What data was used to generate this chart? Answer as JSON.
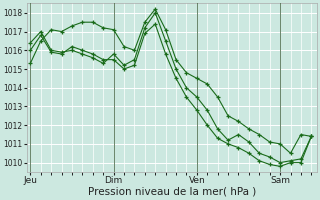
{
  "xlabel": "Pression niveau de la mer( hPa )",
  "bg_color": "#cce8e0",
  "grid_color": "#ffffff",
  "line_color": "#1a6b1a",
  "ylim": [
    1009.5,
    1018.5
  ],
  "yticks": [
    1010,
    1011,
    1012,
    1013,
    1014,
    1015,
    1016,
    1017,
    1018
  ],
  "day_labels": [
    "Jeu",
    "Dim",
    "Ven",
    "Sam"
  ],
  "day_positions": [
    0,
    48,
    96,
    144
  ],
  "xlim": [
    -2,
    165
  ],
  "series": [
    [
      0,
      1015.3,
      6,
      1016.5,
      12,
      1017.1,
      18,
      1017.0,
      24,
      1017.3,
      30,
      1017.5,
      36,
      1017.5,
      42,
      1017.2,
      48,
      1017.1,
      54,
      1016.2,
      60,
      1016.0,
      66,
      1017.5,
      72,
      1018.2,
      78,
      1017.1,
      84,
      1015.5,
      90,
      1014.8,
      96,
      1014.5,
      102,
      1014.2,
      108,
      1013.5,
      114,
      1012.5,
      120,
      1012.2,
      126,
      1011.8,
      132,
      1011.5,
      138,
      1011.1,
      144,
      1011.0,
      150,
      1010.5,
      156,
      1011.5,
      162,
      1011.4
    ],
    [
      0,
      1016.4,
      6,
      1017.0,
      12,
      1016.0,
      18,
      1015.9,
      24,
      1016.0,
      30,
      1015.8,
      36,
      1015.6,
      42,
      1015.3,
      48,
      1015.8,
      54,
      1015.2,
      60,
      1015.5,
      66,
      1017.2,
      72,
      1018.0,
      78,
      1016.5,
      84,
      1015.0,
      90,
      1014.0,
      96,
      1013.5,
      102,
      1012.8,
      108,
      1011.8,
      114,
      1011.2,
      120,
      1011.5,
      126,
      1011.1,
      132,
      1010.5,
      138,
      1010.3,
      144,
      1010.0,
      150,
      1010.1,
      156,
      1010.2,
      162,
      1011.4
    ],
    [
      0,
      1016.0,
      6,
      1016.8,
      12,
      1015.9,
      18,
      1015.8,
      24,
      1016.2,
      30,
      1016.0,
      36,
      1015.8,
      42,
      1015.5,
      48,
      1015.5,
      54,
      1015.0,
      60,
      1015.2,
      66,
      1016.9,
      72,
      1017.4,
      78,
      1015.8,
      84,
      1014.5,
      90,
      1013.5,
      96,
      1012.8,
      102,
      1012.0,
      108,
      1011.3,
      114,
      1011.0,
      120,
      1010.8,
      126,
      1010.5,
      132,
      1010.1,
      138,
      1009.9,
      144,
      1009.8,
      150,
      1010.0,
      156,
      1010.0,
      162,
      1011.4
    ]
  ]
}
